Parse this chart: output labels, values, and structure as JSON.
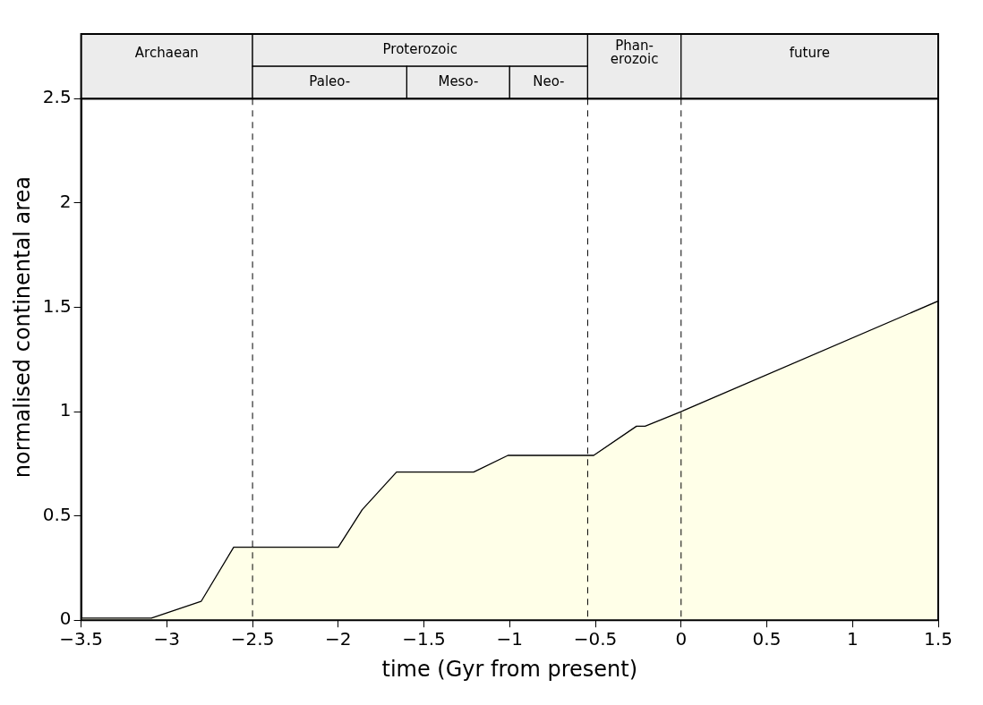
{
  "chart_data": {
    "type": "area",
    "xlabel": "time (Gyr from present)",
    "ylabel": "normalised continental area",
    "x": [
      -3.5,
      -3.09,
      -2.8,
      -2.61,
      -2.0,
      -1.86,
      -1.66,
      -1.21,
      -1.01,
      -0.51,
      -0.26,
      -0.21,
      0,
      1.5
    ],
    "series": [
      {
        "color": "#ffffe8",
        "values": [
          0.01,
          0.01,
          0.09,
          0.35,
          0.35,
          0.53,
          0.71,
          0.71,
          0.79,
          0.79,
          0.93,
          0.93,
          1.0,
          1.53
        ]
      }
    ],
    "xlim": [
      -3.5,
      1.5
    ],
    "xticks": [
      -3.5,
      -3,
      -2.5,
      -2,
      -1.5,
      -1,
      -0.5,
      0,
      0.5,
      1,
      1.5
    ],
    "ylim": [
      0,
      2.81
    ],
    "yticks": [
      0,
      0.5,
      1,
      1.5,
      2,
      2.5
    ],
    "ref_lines": [
      {
        "axis": "x",
        "value": -2.5,
        "line_style": "dashed",
        "color": "#000000"
      },
      {
        "axis": "x",
        "value": -0.545,
        "line_style": "dashed",
        "color": "#000000"
      },
      {
        "axis": "x",
        "value": 0,
        "line_style": "dashed",
        "color": "#000000"
      }
    ],
    "bands": [
      {
        "axis": "x",
        "from": -3.5,
        "to": -2.5,
        "label": "Archaean",
        "color": "#ececec"
      },
      {
        "axis": "x",
        "from": -2.5,
        "to": -0.545,
        "label": "Proterozoic",
        "color": "#ececec"
      },
      {
        "axis": "x",
        "from": -2.5,
        "to": -1.6,
        "label": "Paleo-",
        "color": "#ececec"
      },
      {
        "axis": "x",
        "from": -1.6,
        "to": -1.0,
        "label": "Meso-",
        "color": "#ececec"
      },
      {
        "axis": "x",
        "from": -1.0,
        "to": -0.545,
        "label": "Neo-",
        "color": "#ececec"
      },
      {
        "axis": "x",
        "from": -0.545,
        "to": 0,
        "label": "Phan-\nerozoic",
        "color": "#ececec"
      },
      {
        "axis": "x",
        "from": 0,
        "to": 1.5,
        "label": "future",
        "color": "#ececec"
      }
    ],
    "grid": false,
    "legend": false,
    "line_style": "solid",
    "marker": "none"
  }
}
